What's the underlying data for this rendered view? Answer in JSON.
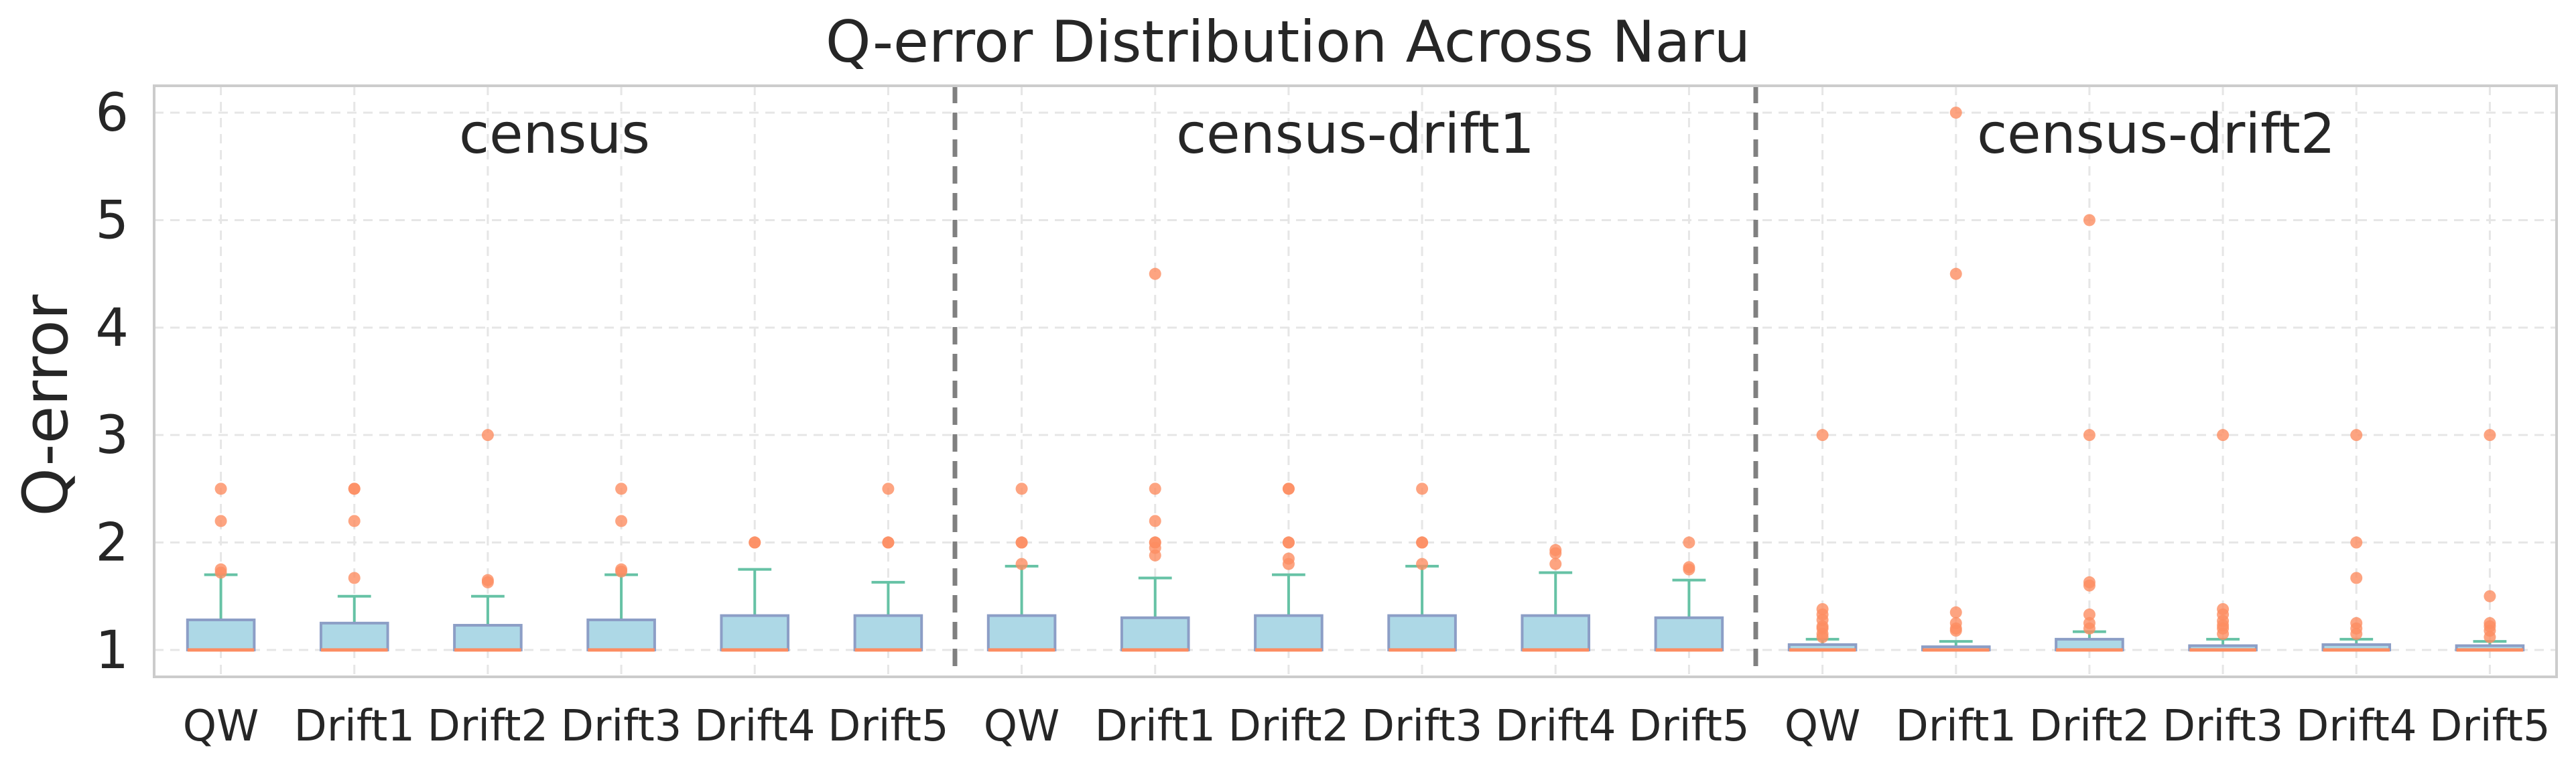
{
  "chart_data": {
    "type": "box",
    "title": "Q-error Distribution Across Naru",
    "ylabel": "Q-error",
    "xlabel": "",
    "ylim": [
      0.75,
      6.25
    ],
    "yticks": [
      1,
      2,
      3,
      4,
      5,
      6
    ],
    "grid": true,
    "categories": [
      "QW",
      "Drift1",
      "Drift2",
      "Drift3",
      "Drift4",
      "Drift5"
    ],
    "colors": {
      "box_fill": "#add8e6",
      "box_edge": "#8c9ec6",
      "median": "#fc8d62",
      "whisker": "#66c2a5",
      "outlier": "#fc8d62",
      "separator": "#808080",
      "grid": "#e6e6e6"
    },
    "groups": [
      {
        "name": "census",
        "boxes": [
          {
            "category": "QW",
            "min": 1.0,
            "q1": 1.0,
            "median": 1.0,
            "q3": 1.28,
            "max": 1.7,
            "outliers": [
              1.72,
              1.75,
              2.2,
              2.5
            ]
          },
          {
            "category": "Drift1",
            "min": 1.0,
            "q1": 1.0,
            "median": 1.0,
            "q3": 1.25,
            "max": 1.5,
            "outliers": [
              1.67,
              2.2,
              2.5,
              2.5
            ]
          },
          {
            "category": "Drift2",
            "min": 1.0,
            "q1": 1.0,
            "median": 1.0,
            "q3": 1.23,
            "max": 1.5,
            "outliers": [
              1.63,
              1.65,
              3.0
            ]
          },
          {
            "category": "Drift3",
            "min": 1.0,
            "q1": 1.0,
            "median": 1.0,
            "q3": 1.28,
            "max": 1.7,
            "outliers": [
              1.73,
              1.75,
              2.2,
              2.5
            ]
          },
          {
            "category": "Drift4",
            "min": 1.0,
            "q1": 1.0,
            "median": 1.0,
            "q3": 1.32,
            "max": 1.75,
            "outliers": [
              2.0,
              2.0
            ]
          },
          {
            "category": "Drift5",
            "min": 1.0,
            "q1": 1.0,
            "median": 1.0,
            "q3": 1.32,
            "max": 1.63,
            "outliers": [
              2.0,
              2.0,
              2.5
            ]
          }
        ]
      },
      {
        "name": "census-drift1",
        "boxes": [
          {
            "category": "QW",
            "min": 1.0,
            "q1": 1.0,
            "median": 1.0,
            "q3": 1.32,
            "max": 1.78,
            "outliers": [
              1.8,
              2.0,
              2.0,
              2.5
            ]
          },
          {
            "category": "Drift1",
            "min": 1.0,
            "q1": 1.0,
            "median": 1.0,
            "q3": 1.3,
            "max": 1.67,
            "outliers": [
              1.88,
              1.95,
              2.0,
              2.0,
              2.2,
              2.5,
              4.5
            ]
          },
          {
            "category": "Drift2",
            "min": 1.0,
            "q1": 1.0,
            "median": 1.0,
            "q3": 1.32,
            "max": 1.7,
            "outliers": [
              1.8,
              1.85,
              2.0,
              2.0,
              2.5,
              2.5
            ]
          },
          {
            "category": "Drift3",
            "min": 1.0,
            "q1": 1.0,
            "median": 1.0,
            "q3": 1.32,
            "max": 1.78,
            "outliers": [
              1.8,
              2.0,
              2.0,
              2.5
            ]
          },
          {
            "category": "Drift4",
            "min": 1.0,
            "q1": 1.0,
            "median": 1.0,
            "q3": 1.32,
            "max": 1.72,
            "outliers": [
              1.8,
              1.9,
              1.93
            ]
          },
          {
            "category": "Drift5",
            "min": 1.0,
            "q1": 1.0,
            "median": 1.0,
            "q3": 1.3,
            "max": 1.65,
            "outliers": [
              1.75,
              1.77,
              2.0
            ]
          }
        ]
      },
      {
        "name": "census-drift2",
        "boxes": [
          {
            "category": "QW",
            "min": 1.0,
            "q1": 1.0,
            "median": 1.0,
            "q3": 1.05,
            "max": 1.1,
            "outliers": [
              1.12,
              1.15,
              1.2,
              1.22,
              1.28,
              1.33,
              1.38,
              3.0
            ]
          },
          {
            "category": "Drift1",
            "min": 1.0,
            "q1": 1.0,
            "median": 1.0,
            "q3": 1.03,
            "max": 1.08,
            "outliers": [
              1.18,
              1.2,
              1.25,
              1.35,
              4.5,
              6.0
            ]
          },
          {
            "category": "Drift2",
            "min": 1.0,
            "q1": 1.0,
            "median": 1.0,
            "q3": 1.1,
            "max": 1.17,
            "outliers": [
              1.2,
              1.25,
              1.33,
              1.6,
              1.63,
              3.0,
              5.0
            ]
          },
          {
            "category": "Drift3",
            "min": 1.0,
            "q1": 1.0,
            "median": 1.0,
            "q3": 1.04,
            "max": 1.1,
            "outliers": [
              1.15,
              1.2,
              1.23,
              1.27,
              1.33,
              1.38,
              3.0
            ]
          },
          {
            "category": "Drift4",
            "min": 1.0,
            "q1": 1.0,
            "median": 1.0,
            "q3": 1.05,
            "max": 1.1,
            "outliers": [
              1.15,
              1.2,
              1.25,
              1.67,
              2.0,
              3.0
            ]
          },
          {
            "category": "Drift5",
            "min": 1.0,
            "q1": 1.0,
            "median": 1.0,
            "q3": 1.04,
            "max": 1.08,
            "outliers": [
              1.12,
              1.18,
              1.22,
              1.25,
              1.5,
              3.0
            ]
          }
        ]
      }
    ]
  }
}
